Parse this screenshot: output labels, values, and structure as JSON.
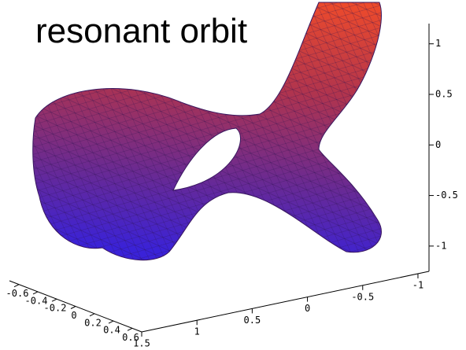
{
  "chart_data": {
    "type": "surface3d",
    "title": "resonant orbit",
    "xlim": [
      -0.7,
      0.7
    ],
    "xticks": [
      -0.6,
      -0.4,
      -0.2,
      0,
      0.2,
      0.4,
      0.6
    ],
    "ylim": [
      -1.1,
      1.5
    ],
    "yticks": [
      1.5,
      1,
      0.5,
      0,
      -0.5,
      -1
    ],
    "zlim": [
      -1.25,
      1.2
    ],
    "zticks": [
      1,
      0.5,
      0,
      -0.5,
      -1
    ]
  }
}
